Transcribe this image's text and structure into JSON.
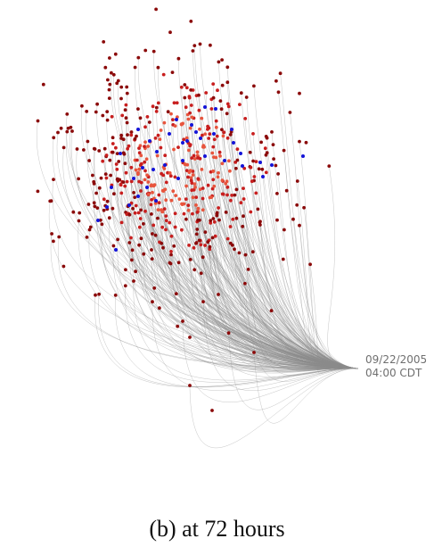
{
  "origin_label": {
    "date": "09/22/2005",
    "time": "04:00 CDT"
  },
  "caption": "(b) at 72 hours",
  "colors": {
    "path_line": "#8a8a8a",
    "dot_dark": "#8b0a0a",
    "dot_mid": "#c81e1e",
    "dot_light": "#e8553d",
    "dot_blue": "#1414d8",
    "label": "#6f6f6f"
  }
}
